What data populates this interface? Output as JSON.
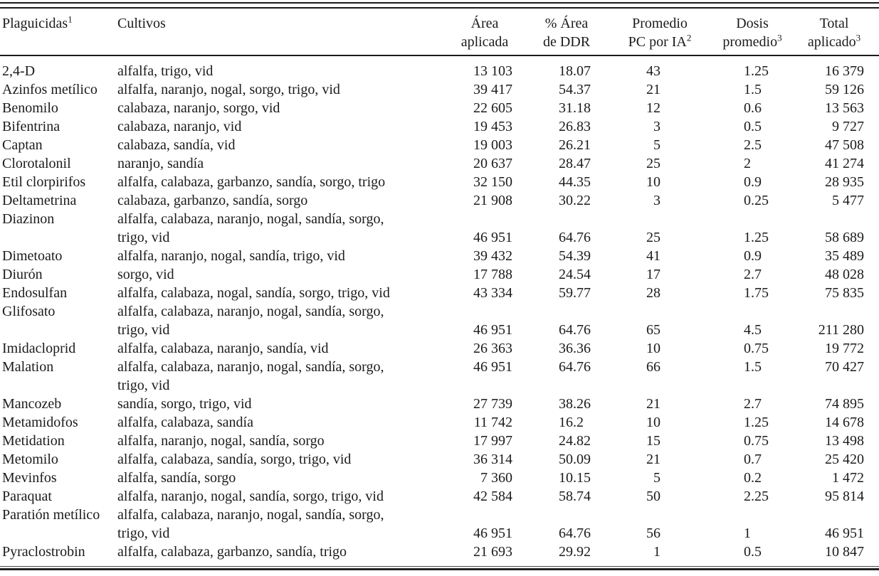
{
  "table": {
    "columns": [
      {
        "line1": "Plaguicidas",
        "sup": "1"
      },
      {
        "line1": "Cultivos"
      },
      {
        "line1": "Área",
        "line2": "aplicada"
      },
      {
        "line1": "% Área",
        "line2": "de DDR"
      },
      {
        "line1": "Promedio",
        "line2": "PC por IA",
        "sup": "2"
      },
      {
        "line1": "Dosis",
        "line2": "promedio",
        "sup": "3"
      },
      {
        "line1": "Total",
        "line2": "aplicado",
        "sup": "3"
      }
    ],
    "rows": [
      {
        "name": "2,4-D",
        "crops": [
          "alfalfa, trigo, vid"
        ],
        "area": "13 103",
        "pct": "18.07",
        "pc": "43",
        "dosis": "1.25",
        "total": "16 379"
      },
      {
        "name": "Azinfos metílico",
        "crops": [
          "alfalfa, naranjo, nogal, sorgo, trigo, vid"
        ],
        "area": "39 417",
        "pct": "54.37",
        "pc": "21",
        "dosis": "1.5",
        "total": "59 126"
      },
      {
        "name": "Benomilo",
        "crops": [
          "calabaza, naranjo, sorgo, vid"
        ],
        "area": "22 605",
        "pct": "31.18",
        "pc": "12",
        "dosis": "0.6",
        "total": "13 563"
      },
      {
        "name": "Bifentrina",
        "crops": [
          "calabaza, naranjo, vid"
        ],
        "area": "19 453",
        "pct": "26.83",
        "pc": "3",
        "dosis": "0.5",
        "total": "9 727"
      },
      {
        "name": "Captan",
        "crops": [
          "calabaza, sandía, vid"
        ],
        "area": "19 003",
        "pct": "26.21",
        "pc": "5",
        "dosis": "2.5",
        "total": "47 508"
      },
      {
        "name": "Clorotalonil",
        "crops": [
          "naranjo, sandía"
        ],
        "area": "20 637",
        "pct": "28.47",
        "pc": "25",
        "dosis": "2",
        "total": "41 274"
      },
      {
        "name": "Etil clorpirifos",
        "crops": [
          "alfalfa, calabaza, garbanzo, sandía, sorgo, trigo"
        ],
        "area": "32 150",
        "pct": "44.35",
        "pc": "10",
        "dosis": "0.9",
        "total": "28 935"
      },
      {
        "name": "Deltametrina",
        "crops": [
          "calabaza, garbanzo, sandía, sorgo"
        ],
        "area": "21 908",
        "pct": "30.22",
        "pc": "3",
        "dosis": "0.25",
        "total": "5 477"
      },
      {
        "name": "Diazinon",
        "crops": [
          "alfalfa, calabaza, naranjo, nogal, sandía, sorgo,",
          "trigo, vid"
        ],
        "values_on_last_line": true,
        "area": "46 951",
        "pct": "64.76",
        "pc": "25",
        "dosis": "1.25",
        "total": "58 689"
      },
      {
        "name": "Dimetoato",
        "crops": [
          "alfalfa, naranjo, nogal, sandía, trigo, vid"
        ],
        "area": "39 432",
        "pct": "54.39",
        "pc": "41",
        "dosis": "0.9",
        "total": "35 489"
      },
      {
        "name": "Diurón",
        "crops": [
          "sorgo, vid"
        ],
        "area": "17 788",
        "pct": "24.54",
        "pc": "17",
        "dosis": "2.7",
        "total": "48 028"
      },
      {
        "name": "Endosulfan",
        "crops": [
          "alfalfa, calabaza, nogal, sandía, sorgo, trigo, vid"
        ],
        "area": "43 334",
        "pct": "59.77",
        "pc": "28",
        "dosis": "1.75",
        "total": "75 835"
      },
      {
        "name": "Glifosato",
        "crops": [
          "alfalfa, calabaza, naranjo, nogal, sandía, sorgo,",
          "trigo, vid"
        ],
        "values_on_last_line": true,
        "area": "46 951",
        "pct": "64.76",
        "pc": "65",
        "dosis": "4.5",
        "total": "211 280"
      },
      {
        "name": "Imidacloprid",
        "crops": [
          "alfalfa, calabaza, naranjo, sandía, vid"
        ],
        "area": "26 363",
        "pct": "36.36",
        "pc": "10",
        "dosis": "0.75",
        "total": "19 772"
      },
      {
        "name": "Malation",
        "crops": [
          "alfalfa, calabaza, naranjo, nogal, sandía, sorgo,",
          "trigo, vid"
        ],
        "area": "46 951",
        "pct": "64.76",
        "pc": "66",
        "dosis": "1.5",
        "total": "70 427"
      },
      {
        "name": "Mancozeb",
        "crops": [
          "sandía, sorgo, trigo, vid"
        ],
        "area": "27 739",
        "pct": "38.26",
        "pc": "21",
        "dosis": "2.7",
        "total": "74 895"
      },
      {
        "name": "Metamidofos",
        "crops": [
          "alfalfa, calabaza, sandía"
        ],
        "area": "11 742",
        "pct": "16.2",
        "pc": "10",
        "dosis": "1.25",
        "total": "14 678"
      },
      {
        "name": "Metidation",
        "crops": [
          "alfalfa, naranjo, nogal, sandía, sorgo"
        ],
        "area": "17 997",
        "pct": "24.82",
        "pc": "15",
        "dosis": "0.75",
        "total": "13 498"
      },
      {
        "name": "Metomilo",
        "crops": [
          "alfalfa, calabaza, sandía, sorgo, trigo, vid"
        ],
        "area": "36 314",
        "pct": "50.09",
        "pc": "21",
        "dosis": "0.7",
        "total": "25 420"
      },
      {
        "name": "Mevinfos",
        "crops": [
          "alfalfa, sandía, sorgo"
        ],
        "area": "7 360",
        "pct": "10.15",
        "pc": "5",
        "dosis": "0.2",
        "total": "1 472"
      },
      {
        "name": "Paraquat",
        "crops": [
          "alfalfa, naranjo, nogal, sandía, sorgo, trigo, vid"
        ],
        "area": "42 584",
        "pct": "58.74",
        "pc": "50",
        "dosis": "2.25",
        "total": "95 814"
      },
      {
        "name": "Paratión metílico",
        "crops": [
          "alfalfa, calabaza, naranjo, nogal, sandía, sorgo,",
          "trigo, vid"
        ],
        "values_on_last_line": true,
        "area": "46 951",
        "pct": "64.76",
        "pc": "56",
        "dosis": "1",
        "total": "46 951"
      },
      {
        "name": "Pyraclostrobin",
        "crops": [
          "alfalfa, calabaza, garbanzo, sandía, trigo"
        ],
        "area": "21 693",
        "pct": "29.92",
        "pc": "1",
        "dosis": "0.5",
        "total": "10 847"
      }
    ]
  }
}
